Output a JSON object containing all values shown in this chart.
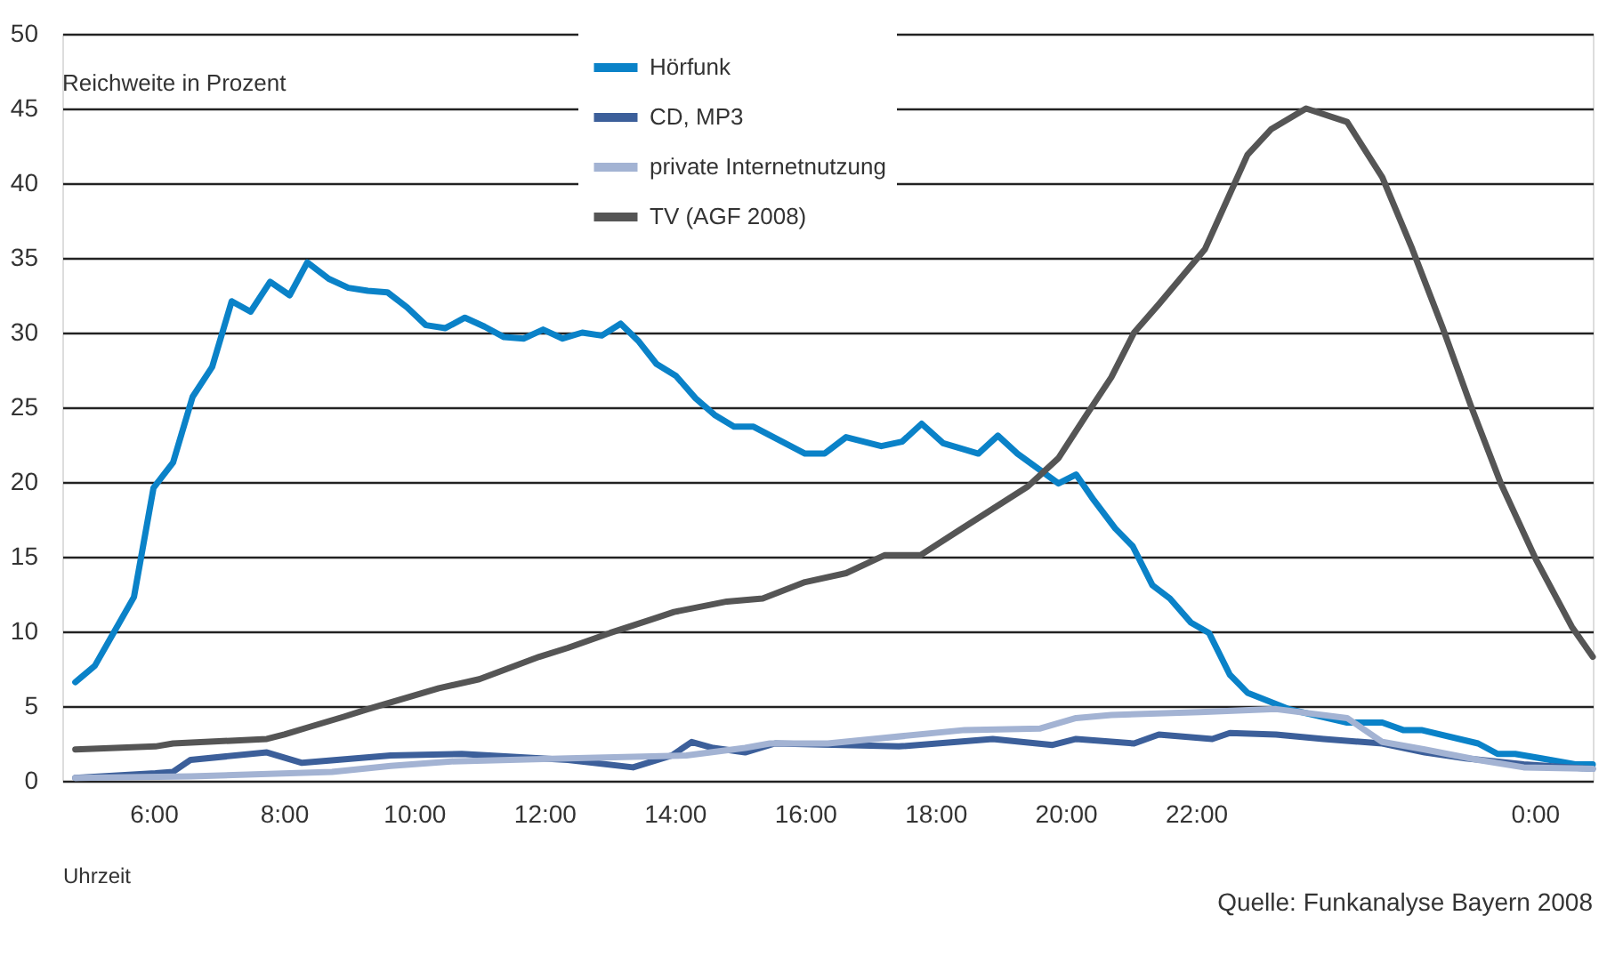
{
  "chart_data": {
    "type": "line",
    "xlabel": "Uhrzeit",
    "ylabel": "Reichweite in Prozent",
    "annotations": [
      "Quelle: Funkanalyse Bayern 2008"
    ],
    "xlim": [
      4.6,
      28.09
    ],
    "ylim": [
      0,
      50
    ],
    "xticks": [
      {
        "value": 6,
        "label": "6:00"
      },
      {
        "value": 8,
        "label": "8:00"
      },
      {
        "value": 10,
        "label": "10:00"
      },
      {
        "value": 12,
        "label": "12:00"
      },
      {
        "value": 14,
        "label": "14:00"
      },
      {
        "value": 16,
        "label": "16:00"
      },
      {
        "value": 18,
        "label": "18:00"
      },
      {
        "value": 20,
        "label": "20:00"
      },
      {
        "value": 22,
        "label": "22:00"
      },
      {
        "value": 27.2,
        "label": "0:00"
      }
    ],
    "yticks": [
      0,
      5,
      10,
      15,
      20,
      25,
      30,
      35,
      40,
      45,
      50
    ],
    "grid": "y",
    "legend": "top",
    "marker": "none",
    "line_style": "solid",
    "series": [
      {
        "name": "Hörfunk",
        "color": "#0a82c8",
        "x": [
          4.8,
          5.1,
          5.4,
          5.7,
          6.0,
          6.3,
          6.6,
          6.9,
          7.2,
          7.49,
          7.79,
          8.09,
          8.36,
          8.69,
          8.99,
          9.29,
          9.59,
          9.89,
          10.18,
          10.48,
          10.78,
          11.08,
          11.38,
          11.68,
          11.98,
          12.28,
          12.58,
          12.88,
          13.17,
          13.45,
          13.72,
          14.02,
          14.32,
          14.61,
          14.91,
          15.21,
          16.0,
          16.3,
          16.63,
          17.17,
          17.49,
          17.79,
          18.12,
          18.66,
          18.96,
          19.26,
          19.89,
          20.16,
          20.43,
          20.76,
          21.03,
          21.33,
          21.6,
          21.92,
          22.2,
          22.52,
          22.79,
          23.42,
          24.32,
          24.86,
          25.18,
          25.46,
          26.33,
          26.63,
          26.9,
          27.3,
          27.82,
          28.09
        ],
        "values": [
          6.6,
          7.7,
          10,
          12.3,
          19.6,
          21.3,
          25.7,
          27.7,
          32.1,
          31.4,
          33.4,
          32.5,
          34.7,
          33.6,
          33,
          32.8,
          32.7,
          31.7,
          30.5,
          30.3,
          31,
          30.4,
          29.7,
          29.6,
          30.2,
          29.6,
          30,
          29.8,
          30.6,
          29.4,
          27.9,
          27.1,
          25.6,
          24.5,
          23.7,
          23.7,
          21.9,
          21.9,
          23,
          22.4,
          22.7,
          23.9,
          22.6,
          21.9,
          23.1,
          21.9,
          19.9,
          20.5,
          18.8,
          16.9,
          15.7,
          13.1,
          12.2,
          10.6,
          9.9,
          7.1,
          5.9,
          4.8,
          3.9,
          3.9,
          3.4,
          3.4,
          2.5,
          1.8,
          1.8,
          1.5,
          1.1,
          1.1
        ]
      },
      {
        "name": "CD, MP3",
        "color": "#3c5f9a",
        "x": [
          4.8,
          6.03,
          6.3,
          6.57,
          7.74,
          8.28,
          9.64,
          10.73,
          12.36,
          13.36,
          13.96,
          14.26,
          14.59,
          15.08,
          15.54,
          17.44,
          18.88,
          19.8,
          20.16,
          21.05,
          21.43,
          22.25,
          22.52,
          23.23,
          23.96,
          24.86,
          25.51,
          26.14,
          27.03,
          28.09
        ],
        "values": [
          0.2,
          0.5,
          0.6,
          1.4,
          1.9,
          1.2,
          1.7,
          1.8,
          1.4,
          0.9,
          1.7,
          2.6,
          2.2,
          1.9,
          2.5,
          2.3,
          2.8,
          2.4,
          2.8,
          2.5,
          3.1,
          2.8,
          3.2,
          3.1,
          2.8,
          2.5,
          1.9,
          1.5,
          1.1,
          0.8
        ]
      },
      {
        "name": "private Internetnutzung",
        "color": "#a3b3d3",
        "x": [
          4.8,
          6.57,
          8.74,
          9.64,
          10.57,
          12.36,
          14.18,
          15.08,
          15.46,
          16.35,
          18.45,
          19.61,
          20.16,
          20.7,
          22.06,
          23.23,
          24.32,
          24.86,
          25.51,
          26.33,
          27.03,
          28.09
        ],
        "values": [
          0.2,
          0.3,
          0.6,
          1.0,
          1.3,
          1.5,
          1.7,
          2.2,
          2.5,
          2.5,
          3.4,
          3.5,
          4.2,
          4.4,
          4.6,
          4.8,
          4.2,
          2.6,
          2.1,
          1.4,
          0.9,
          0.8
        ]
      },
      {
        "name": "TV (AGF 2008)",
        "color": "#555555",
        "x": [
          4.8,
          6.03,
          6.3,
          7.74,
          8.01,
          8.39,
          8.93,
          9.29,
          10.38,
          11.0,
          11.92,
          12.36,
          13.01,
          13.64,
          13.99,
          14.8,
          15.35,
          16.0,
          16.63,
          17.22,
          17.77,
          18.34,
          18.88,
          19.42,
          19.89,
          20.35,
          20.7,
          21.05,
          21.43,
          22.14,
          22.79,
          23.15,
          23.69,
          24.32,
          24.86,
          25.32,
          25.78,
          26.22,
          26.68,
          27.22,
          27.77,
          28.09
        ],
        "values": [
          2.1,
          2.3,
          2.5,
          2.8,
          3.1,
          3.6,
          4.3,
          4.8,
          6.2,
          6.8,
          8.3,
          8.9,
          9.9,
          10.8,
          11.3,
          12,
          12.2,
          13.3,
          13.9,
          15.1,
          15.1,
          16.7,
          18.2,
          19.7,
          21.6,
          24.7,
          27,
          30,
          31.9,
          35.6,
          41.9,
          43.6,
          45,
          44.1,
          40.4,
          35.6,
          30.4,
          25.1,
          19.9,
          14.8,
          10.3,
          8.3
        ]
      }
    ]
  }
}
